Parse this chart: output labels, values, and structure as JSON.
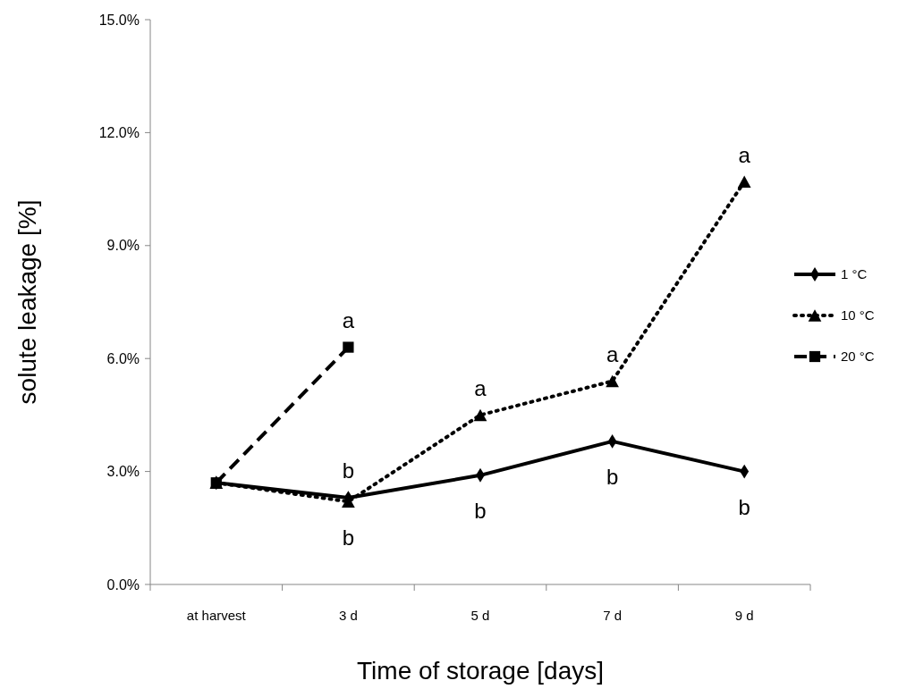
{
  "chart_data": {
    "type": "line",
    "xlabel": "Time of storage [days]",
    "ylabel": "solute leakage [%]",
    "categories": [
      "at harvest",
      "3 d",
      "5 d",
      "7 d",
      "9 d"
    ],
    "series": [
      {
        "name": "1 °C",
        "color": "#000000",
        "marker": "diamond",
        "line_style": "solid",
        "values": [
          2.7,
          2.3,
          2.9,
          3.8,
          3.0
        ]
      },
      {
        "name": "10 °C",
        "color": "#000000",
        "marker": "triangle",
        "line_style": "dotted",
        "values": [
          2.7,
          2.2,
          4.5,
          5.4,
          10.7
        ]
      },
      {
        "name": "20 °C",
        "color": "#000000",
        "marker": "square",
        "line_style": "dashed",
        "values": [
          2.7,
          6.3,
          null,
          null,
          null
        ]
      }
    ],
    "ylim": [
      0,
      15
    ],
    "yticks": [
      {
        "value": 0,
        "label": "0.0%"
      },
      {
        "value": 3,
        "label": "3.0%"
      },
      {
        "value": 6,
        "label": "6.0%"
      },
      {
        "value": 9,
        "label": "9.0%"
      },
      {
        "value": 12,
        "label": "12.0%"
      },
      {
        "value": 15,
        "label": "15.0%"
      }
    ],
    "grid": false,
    "legend": "right",
    "annotations": [
      {
        "text": "a",
        "x": "3 d",
        "y": 6.3
      },
      {
        "text": "b",
        "x": "3 d",
        "y": 2.3
      },
      {
        "text": "b",
        "x": "3 d",
        "y": 2.2
      },
      {
        "text": "a",
        "x": "5 d",
        "y": 4.5
      },
      {
        "text": "b",
        "x": "5 d",
        "y": 2.9
      },
      {
        "text": "a",
        "x": "7 d",
        "y": 5.4
      },
      {
        "text": "b",
        "x": "7 d",
        "y": 3.8
      },
      {
        "text": "a",
        "x": "9 d",
        "y": 10.7
      },
      {
        "text": "b",
        "x": "9 d",
        "y": 3.0
      }
    ]
  }
}
